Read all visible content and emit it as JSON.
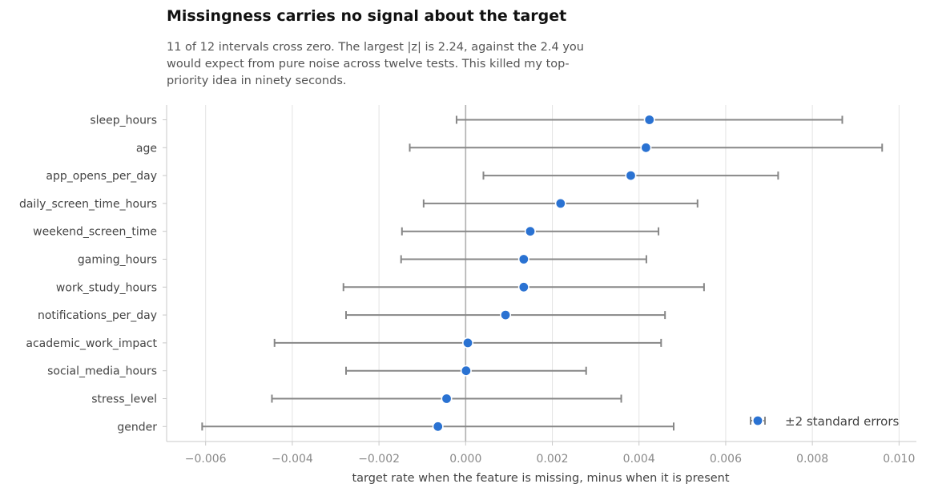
{
  "title": "Missingness carries no signal about the target",
  "subtitle": "11 of 12 intervals cross zero. The largest |z| is 2.24, against the 2.4 you would expect from pure noise across twelve tests. This killed my top-priority idea in ninety seconds.",
  "chart_data": {
    "type": "scatter",
    "xlabel": "target rate when the feature is missing, minus when it is present",
    "xlim": [
      -0.0069,
      0.0104
    ],
    "xticks": [
      -0.006,
      -0.004,
      -0.002,
      0.0,
      0.002,
      0.004,
      0.006,
      0.008,
      0.01
    ],
    "xtick_labels": [
      "−0.006",
      "−0.004",
      "−0.002",
      "0.000",
      "0.002",
      "0.004",
      "0.006",
      "0.008",
      "0.010"
    ],
    "grid": "vertical",
    "legend": {
      "label": "±2 standard errors",
      "placement": "bottom-right"
    },
    "colors": {
      "point": "#2a72d2",
      "errorbar": "#878787",
      "zero_line": "#b0b0b0",
      "grid": "#e3e3e3",
      "axis": "#c8c8c8"
    },
    "points": [
      {
        "feature": "sleep_hours",
        "estimate": 0.00424,
        "low": -0.00021,
        "high": 0.00869
      },
      {
        "feature": "age",
        "estimate": 0.00416,
        "low": -0.00129,
        "high": 0.00961
      },
      {
        "feature": "app_opens_per_day",
        "estimate": 0.00381,
        "low": 0.00041,
        "high": 0.00721
      },
      {
        "feature": "daily_screen_time_hours",
        "estimate": 0.00219,
        "low": -0.00097,
        "high": 0.00535
      },
      {
        "feature": "weekend_screen_time",
        "estimate": 0.00149,
        "low": -0.00147,
        "high": 0.00445
      },
      {
        "feature": "gaming_hours",
        "estimate": 0.00134,
        "low": -0.00149,
        "high": 0.00417
      },
      {
        "feature": "work_study_hours",
        "estimate": 0.00134,
        "low": -0.00282,
        "high": 0.0055
      },
      {
        "feature": "notifications_per_day",
        "estimate": 0.00092,
        "low": -0.00276,
        "high": 0.0046
      },
      {
        "feature": "academic_work_impact",
        "estimate": 5e-05,
        "low": -0.00441,
        "high": 0.00451
      },
      {
        "feature": "social_media_hours",
        "estimate": 1e-05,
        "low": -0.00276,
        "high": 0.00278
      },
      {
        "feature": "stress_level",
        "estimate": -0.00044,
        "low": -0.00447,
        "high": 0.00359
      },
      {
        "feature": "gender",
        "estimate": -0.00064,
        "low": -0.00608,
        "high": 0.0048
      }
    ]
  }
}
